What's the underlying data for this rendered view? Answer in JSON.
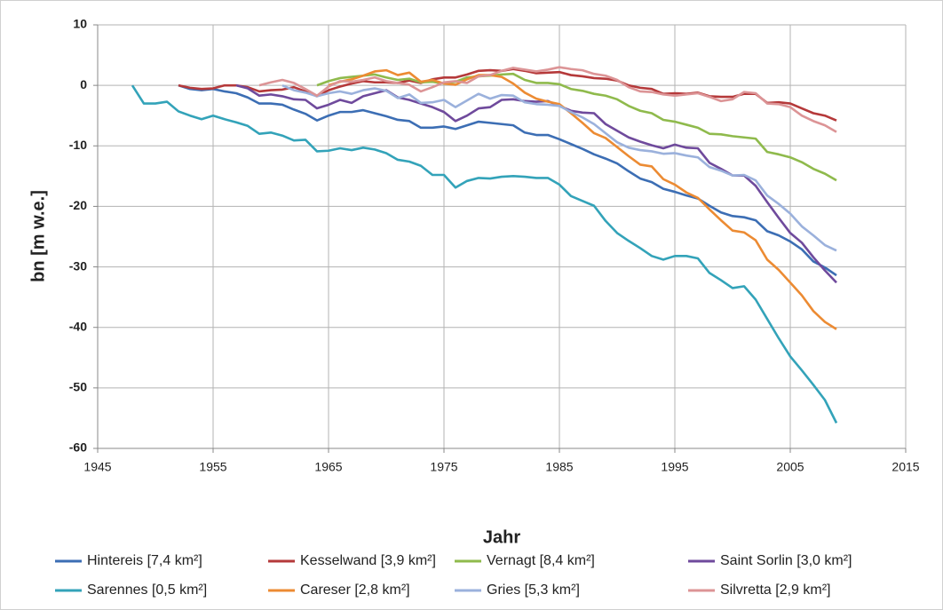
{
  "chart_data": {
    "type": "line",
    "x_label": "Jahr",
    "y_label": "bn [m w.e.]",
    "xlim": [
      1945,
      2015
    ],
    "xticks": [
      1945,
      1955,
      1965,
      1975,
      1985,
      1995,
      2005,
      2015
    ],
    "ylim": [
      -60,
      10
    ],
    "yticks": [
      10,
      0,
      -10,
      -20,
      -30,
      -40,
      -50,
      -60
    ],
    "grid": true,
    "legend": "bottom",
    "x": [
      1948,
      1949,
      1950,
      1951,
      1952,
      1953,
      1954,
      1955,
      1956,
      1957,
      1958,
      1959,
      1960,
      1961,
      1962,
      1963,
      1964,
      1965,
      1966,
      1967,
      1968,
      1969,
      1970,
      1971,
      1972,
      1973,
      1974,
      1975,
      1976,
      1977,
      1978,
      1979,
      1980,
      1981,
      1982,
      1983,
      1984,
      1985,
      1986,
      1987,
      1988,
      1989,
      1990,
      1991,
      1992,
      1993,
      1994,
      1995,
      1996,
      1997,
      1998,
      1999,
      2000,
      2001,
      2002,
      2003,
      2004,
      2005,
      2006,
      2007,
      2008,
      2009
    ],
    "series": [
      {
        "name": "Hintereis [7,4 km²]",
        "color": "#3c6eb4",
        "values": [
          null,
          null,
          null,
          null,
          0,
          -0.6,
          -0.8,
          -0.6,
          -1,
          -1.3,
          -2,
          -3,
          -3,
          -3.2,
          -4,
          -4.7,
          -5.8,
          -5,
          -4.4,
          -4.4,
          -4.1,
          -4.6,
          -5.1,
          -5.7,
          -5.9,
          -7,
          -7,
          -6.8,
          -7.2,
          -6.6,
          -6,
          -6.2,
          -6.4,
          -6.6,
          -7.8,
          -8.2,
          -8.2,
          -8.9,
          -9.7,
          -10.5,
          -11.4,
          -12.1,
          -12.9,
          -14.2,
          -15.4,
          -16,
          -17.1,
          -17.6,
          -18.2,
          -18.7,
          -19.9,
          -21,
          -21.6,
          -21.8,
          -22.3,
          -24.1,
          -24.8,
          -25.8,
          -27.1,
          -29.1,
          -30.1,
          -31.4
        ]
      },
      {
        "name": "Kesselwand [3,9 km²]",
        "color": "#b5393a",
        "values": [
          null,
          null,
          null,
          null,
          0,
          -0.4,
          -0.6,
          -0.5,
          0,
          0,
          -0.3,
          -1,
          -0.8,
          -0.7,
          -0.3,
          -1,
          -1.8,
          -0.8,
          -0.2,
          0.3,
          0.7,
          0.5,
          0.5,
          0.4,
          0.8,
          0.4,
          1,
          1.3,
          1.3,
          1.8,
          2.4,
          2.5,
          2.4,
          2.7,
          2.4,
          2,
          2.1,
          2.2,
          1.7,
          1.5,
          1.2,
          1.1,
          0.8,
          0,
          -0.4,
          -0.6,
          -1.4,
          -1.3,
          -1.4,
          -1.2,
          -1.8,
          -1.9,
          -1.9,
          -1.4,
          -1.4,
          -2.9,
          -2.8,
          -3,
          -3.8,
          -4.6,
          -5,
          -5.8
        ]
      },
      {
        "name": "Vernagt [8,4 km²]",
        "color": "#8fba4c",
        "values": [
          null,
          null,
          null,
          null,
          null,
          null,
          null,
          null,
          null,
          null,
          null,
          null,
          null,
          null,
          null,
          null,
          0,
          0.7,
          1.2,
          1.4,
          1.6,
          1.8,
          1.3,
          0.9,
          1.1,
          0.5,
          0.6,
          0.3,
          0.6,
          1.3,
          1.5,
          1.6,
          1.8,
          1.9,
          0.9,
          0.4,
          0.4,
          0.2,
          -0.6,
          -0.9,
          -1.4,
          -1.7,
          -2.3,
          -3.4,
          -4.2,
          -4.6,
          -5.7,
          -6,
          -6.5,
          -7,
          -8,
          -8.1,
          -8.4,
          -8.6,
          -8.8,
          -11,
          -11.4,
          -11.9,
          -12.7,
          -13.8,
          -14.6,
          -15.7
        ]
      },
      {
        "name": "Saint Sorlin [3,0 km²]",
        "color": "#6f4a9c",
        "values": [
          null,
          null,
          null,
          null,
          null,
          null,
          null,
          null,
          null,
          0,
          -0.5,
          -1.7,
          -1.5,
          -1.8,
          -2.3,
          -2.4,
          -3.8,
          -3.2,
          -2.4,
          -2.9,
          -1.8,
          -1.3,
          -0.8,
          -2,
          -2.4,
          -3,
          -3.6,
          -4.4,
          -5.9,
          -5,
          -3.8,
          -3.6,
          -2.4,
          -2.3,
          -2.6,
          -2.7,
          -2.6,
          -3.4,
          -4.2,
          -4.5,
          -4.6,
          -6.4,
          -7.5,
          -8.6,
          -9.3,
          -9.9,
          -10.4,
          -9.8,
          -10.3,
          -10.4,
          -12.8,
          -13.8,
          -14.9,
          -14.9,
          -16.6,
          -19.3,
          -21.9,
          -24.4,
          -26,
          -28.4,
          -30.6,
          -32.6
        ]
      },
      {
        "name": "Sarennes [0,5 km²]",
        "color": "#33a3b9",
        "values": [
          0,
          -3,
          -3,
          -2.7,
          -4.3,
          -5,
          -5.6,
          -5,
          -5.6,
          -6.1,
          -6.7,
          -8,
          -7.8,
          -8.3,
          -9.1,
          -9,
          -10.9,
          -10.8,
          -10.4,
          -10.7,
          -10.3,
          -10.6,
          -11.2,
          -12.3,
          -12.6,
          -13.3,
          -14.8,
          -14.8,
          -16.9,
          -15.8,
          -15.3,
          -15.4,
          -15.1,
          -15,
          -15.1,
          -15.3,
          -15.3,
          -16.4,
          -18.3,
          -19.1,
          -19.9,
          -22.4,
          -24.4,
          -25.7,
          -26.9,
          -28.2,
          -28.8,
          -28.2,
          -28.2,
          -28.6,
          -31,
          -32.2,
          -33.5,
          -33.2,
          -35.4,
          -38.6,
          -41.8,
          -44.8,
          -47.1,
          -49.5,
          -52,
          -55.8
        ]
      },
      {
        "name": "Careser [2,8 km²]",
        "color": "#ec8b33",
        "values": [
          null,
          null,
          null,
          null,
          null,
          null,
          null,
          null,
          null,
          null,
          null,
          null,
          null,
          null,
          null,
          null,
          null,
          0,
          0.6,
          1,
          1.6,
          2.3,
          2.5,
          1.7,
          2.1,
          0.6,
          0.9,
          0.3,
          0.1,
          1,
          1.7,
          1.7,
          1.4,
          0.3,
          -1.2,
          -2.2,
          -2.7,
          -3.1,
          -4.6,
          -6.2,
          -7.9,
          -8.7,
          -10.2,
          -11.7,
          -13.1,
          -13.4,
          -15.5,
          -16.4,
          -17.7,
          -18.6,
          -20.5,
          -22.3,
          -24,
          -24.3,
          -25.6,
          -28.8,
          -30.5,
          -32.6,
          -34.7,
          -37.3,
          -39.1,
          -40.3
        ]
      },
      {
        "name": "Gries [5,3 km²]",
        "color": "#9bb1dc",
        "values": [
          null,
          null,
          null,
          null,
          null,
          null,
          null,
          null,
          null,
          null,
          null,
          null,
          null,
          0,
          -0.8,
          -1.2,
          -1.8,
          -1.3,
          -1,
          -1.4,
          -0.8,
          -0.5,
          -0.9,
          -2.1,
          -1.5,
          -2.9,
          -2.8,
          -2.4,
          -3.6,
          -2.5,
          -1.4,
          -2.2,
          -1.6,
          -1.7,
          -2.8,
          -3.1,
          -3.2,
          -3.4,
          -4.4,
          -5.3,
          -6.4,
          -7.9,
          -9.4,
          -10.3,
          -10.7,
          -10.9,
          -11.3,
          -11.2,
          -11.6,
          -11.9,
          -13.5,
          -14.1,
          -14.9,
          -14.8,
          -15.7,
          -18.2,
          -19.6,
          -21.2,
          -23.3,
          -24.8,
          -26.4,
          -27.3
        ]
      },
      {
        "name": "Silvretta [2,9 km²]",
        "color": "#dc9496",
        "values": [
          null,
          null,
          null,
          null,
          null,
          null,
          null,
          null,
          null,
          null,
          null,
          0,
          0.5,
          0.9,
          0.4,
          -0.6,
          -1.7,
          -0.2,
          0.7,
          0.6,
          0.9,
          1.3,
          0.7,
          0.4,
          0.1,
          -1,
          -0.3,
          0.5,
          0.7,
          0.4,
          1.5,
          1.7,
          2.4,
          2.9,
          2.6,
          2.3,
          2.6,
          3,
          2.7,
          2.5,
          1.9,
          1.6,
          0.9,
          -0.3,
          -1,
          -1.1,
          -1.5,
          -1.7,
          -1.5,
          -1.3,
          -1.9,
          -2.6,
          -2.3,
          -1.1,
          -1.3,
          -3,
          -3.1,
          -3.6,
          -5,
          -5.9,
          -6.6,
          -7.7
        ]
      }
    ]
  }
}
